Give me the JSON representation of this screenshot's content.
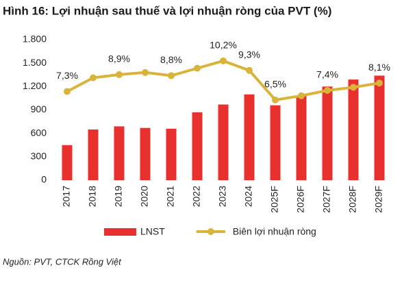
{
  "chart_data": {
    "type": "combo",
    "title": "Hình 16: Lợi nhuận sau thuế và lợi nhuận ròng của PVT (%)",
    "source": "Nguồn: PVT, CTCK Rồng Việt",
    "categories": [
      "2017",
      "2018",
      "2019",
      "2020",
      "2021",
      "2022",
      "2023",
      "2024",
      "2025F",
      "2026F",
      "2027F",
      "2028F",
      "2029F"
    ],
    "series": [
      {
        "name": "LNST",
        "type": "bar",
        "color": "#e8312f",
        "values": [
          450,
          650,
          690,
          670,
          660,
          870,
          970,
          1100,
          960,
          1080,
          1200,
          1290,
          1340
        ]
      },
      {
        "name": "Biên lợi nhuận ròng",
        "type": "line",
        "axis": "y2",
        "color": "#d9b43b",
        "values": [
          7.3,
          8.6,
          8.9,
          9.1,
          8.8,
          9.5,
          10.2,
          9.3,
          6.5,
          6.9,
          7.4,
          7.7,
          8.1
        ],
        "value_labels": [
          "7,3%",
          null,
          "8,9%",
          null,
          "8,8%",
          null,
          "10,2%",
          "9,3%",
          "6,5%",
          null,
          "7,4%",
          null,
          "8,1%"
        ]
      }
    ],
    "ylim": [
      0,
      1800
    ],
    "yticks": [
      0,
      300,
      600,
      900,
      {
        "value": 1200,
        "label": "1.200"
      },
      {
        "value": 1500,
        "label": "1.500"
      },
      {
        "value": 1800,
        "label": "1.800"
      }
    ],
    "y2lim": [
      -1.1,
      12.2
    ],
    "grid": false,
    "legend": "bottom"
  }
}
